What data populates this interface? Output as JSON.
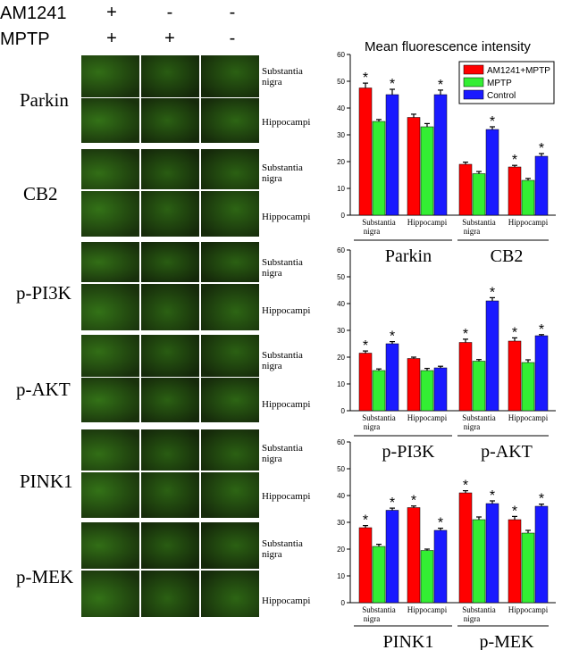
{
  "header": {
    "row1": {
      "label": "AM1241",
      "signs": [
        "+",
        "-",
        "-"
      ]
    },
    "row2": {
      "label": "MPTP",
      "signs": [
        "+",
        "+",
        "-"
      ]
    }
  },
  "micrograph_panel": {
    "markers": [
      "Parkin",
      "CB2",
      "p-PI3K",
      "p-AKT",
      "PINK1",
      "p-MEK"
    ],
    "regions": {
      "sn": "Substantia nigra",
      "hc": "Hippocampi"
    }
  },
  "colors": {
    "am1241_mptp": "#ff0000",
    "mptp": "#33ee33",
    "control": "#1a1aff",
    "tile_base": "#1f3d10"
  },
  "chart_data": [
    {
      "type": "bar",
      "title": "Mean fluorescence intensity",
      "legend": {
        "position": "top-right",
        "entries": [
          "AM1241+MPTP",
          "MPTP",
          "Control"
        ]
      },
      "ylim": [
        0,
        60
      ],
      "yticks": [
        0,
        10,
        20,
        30,
        40,
        50,
        60
      ],
      "categories": [
        "Substantia nigra",
        "Hippocampi",
        "Substantia nigra",
        "Hippocampi"
      ],
      "groups": [
        "Parkin",
        "CB2"
      ],
      "series": [
        {
          "name": "AM1241+MPTP",
          "values": [
            47.5,
            36.5,
            19,
            18
          ],
          "errors": [
            1.8,
            1.2,
            0.8,
            0.6
          ]
        },
        {
          "name": "MPTP",
          "values": [
            35,
            33,
            15.5,
            13
          ],
          "errors": [
            0.7,
            1.2,
            0.8,
            0.7
          ]
        },
        {
          "name": "Control",
          "values": [
            45,
            45,
            32,
            22
          ],
          "errors": [
            2,
            1.7,
            1,
            1
          ]
        }
      ],
      "significant": [
        [
          true,
          false,
          false,
          true
        ],
        [
          false,
          false,
          false,
          false
        ],
        [
          true,
          true,
          true,
          true
        ]
      ],
      "sig_symbol": "*"
    },
    {
      "type": "bar",
      "ylim": [
        0,
        60
      ],
      "yticks": [
        0,
        10,
        20,
        30,
        40,
        50,
        60
      ],
      "categories": [
        "Substantia nigra",
        "Hippocampi",
        "Substantia nigra",
        "Hippocampi"
      ],
      "groups": [
        "p-PI3K",
        "p-AKT"
      ],
      "series": [
        {
          "name": "AM1241+MPTP",
          "values": [
            21.5,
            19.5,
            25.5,
            26
          ],
          "errors": [
            0.8,
            0.5,
            1.2,
            1.2
          ]
        },
        {
          "name": "MPTP",
          "values": [
            15,
            15,
            18.5,
            18
          ],
          "errors": [
            0.6,
            0.8,
            0.6,
            1
          ]
        },
        {
          "name": "Control",
          "values": [
            25,
            16,
            41,
            28
          ],
          "errors": [
            0.8,
            0.6,
            1.2,
            0.4
          ]
        }
      ],
      "significant": [
        [
          true,
          false,
          true,
          true
        ],
        [
          false,
          false,
          false,
          false
        ],
        [
          true,
          false,
          true,
          true
        ]
      ],
      "sig_symbol": "*"
    },
    {
      "type": "bar",
      "ylim": [
        0,
        60
      ],
      "yticks": [
        0,
        10,
        20,
        30,
        40,
        50,
        60
      ],
      "categories": [
        "Substantia nigra",
        "Hippocampi",
        "Substantia nigra",
        "Hippocampi"
      ],
      "groups": [
        "PINK1",
        "p-MEK"
      ],
      "series": [
        {
          "name": "AM1241+MPTP",
          "values": [
            28,
            35.5,
            41,
            31
          ],
          "errors": [
            0.8,
            0.6,
            0.8,
            1.2
          ]
        },
        {
          "name": "MPTP",
          "values": [
            21,
            19.5,
            31,
            26
          ],
          "errors": [
            0.8,
            0.5,
            1,
            1
          ]
        },
        {
          "name": "Control",
          "values": [
            34.5,
            27,
            37,
            36
          ],
          "errors": [
            0.8,
            0.8,
            1,
            0.8
          ]
        }
      ],
      "significant": [
        [
          true,
          true,
          true,
          true
        ],
        [
          false,
          false,
          false,
          false
        ],
        [
          true,
          true,
          true,
          true
        ]
      ],
      "sig_symbol": "*"
    }
  ]
}
